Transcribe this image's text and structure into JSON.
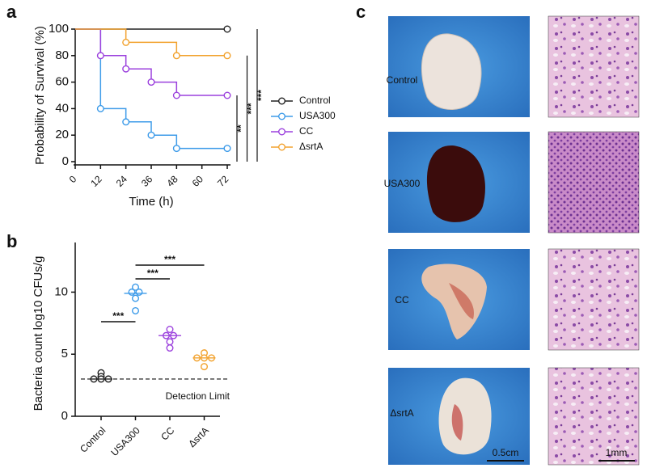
{
  "panel_labels": [
    "a",
    "b",
    "c"
  ],
  "chart_data": [
    {
      "type": "line",
      "xlabel": "Time (h)",
      "ylabel": "Probability of Survival (%)",
      "xlim": [
        0,
        72
      ],
      "xticks": [
        0,
        12,
        24,
        36,
        48,
        60,
        72
      ],
      "ylim": [
        0,
        100
      ],
      "yticks": [
        0,
        20,
        40,
        60,
        80,
        100
      ],
      "series": [
        {
          "name": "Control",
          "color": "#222222",
          "x": [
            0,
            72
          ],
          "values": [
            100,
            100
          ]
        },
        {
          "name": "USA300",
          "color": "#3d9be9",
          "x": [
            0,
            12,
            24,
            36,
            48,
            72
          ],
          "values": [
            100,
            40,
            30,
            20,
            10,
            10
          ]
        },
        {
          "name": "CC",
          "color": "#9b40dd",
          "x": [
            0,
            12,
            24,
            36,
            48,
            72
          ],
          "values": [
            100,
            80,
            70,
            60,
            50,
            50
          ]
        },
        {
          "name": "ΔsrtA",
          "color": "#f2a22e",
          "x": [
            0,
            24,
            48,
            72
          ],
          "values": [
            100,
            90,
            80,
            80
          ]
        }
      ],
      "annotations": [
        {
          "text": "**",
          "series": [
            "CC",
            "USA300"
          ]
        },
        {
          "text": "***",
          "series": [
            "ΔsrtA",
            "USA300"
          ]
        },
        {
          "text": "***",
          "series": [
            "Control",
            "USA300"
          ]
        }
      ]
    },
    {
      "type": "scatter",
      "ylabel": "Bacteria count log10 CFUs/g",
      "categories": [
        "Control",
        "USA300",
        "CC",
        "ΔsrtA"
      ],
      "colors": [
        "#222222",
        "#3d9be9",
        "#9b40dd",
        "#f2a22e"
      ],
      "ylim": [
        0,
        14
      ],
      "yticks": [
        0,
        5,
        10
      ],
      "values": [
        [
          3.5,
          3.2,
          3.0,
          3.0,
          3.0
        ],
        [
          10.4,
          10.0,
          10.0,
          9.5,
          8.5
        ],
        [
          7.0,
          6.5,
          6.5,
          6.0,
          5.5
        ],
        [
          5.1,
          4.7,
          4.7,
          4.7,
          4.0
        ]
      ],
      "means": [
        3.0,
        9.9,
        6.5,
        4.7
      ],
      "detection_limit": {
        "value": 3.0,
        "label": "Detection Limit"
      },
      "annotations": [
        {
          "text": "***",
          "categories": [
            "Control",
            "USA300"
          ]
        },
        {
          "text": "***",
          "categories": [
            "USA300",
            "CC"
          ]
        },
        {
          "text": "***",
          "categories": [
            "USA300",
            "ΔsrtA"
          ]
        }
      ]
    }
  ],
  "panel_c": {
    "rows": [
      "Control",
      "USA300",
      "CC",
      "ΔsrtA"
    ],
    "scale_bars": [
      "0.5cm",
      "1mm"
    ]
  }
}
